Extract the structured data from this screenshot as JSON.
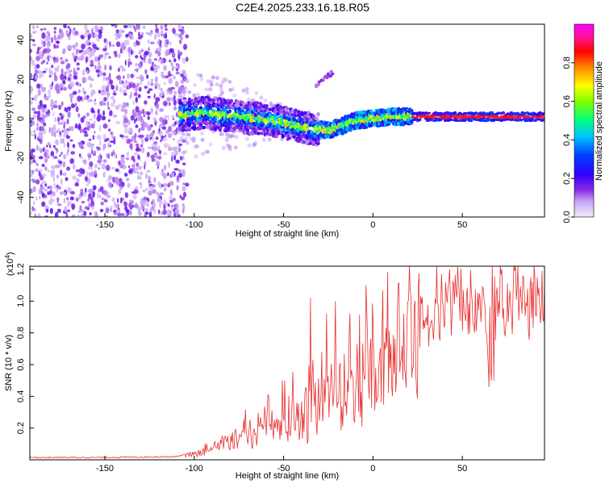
{
  "title": "C2E4.2025.233.16.18.R05",
  "chart_data": [
    {
      "type": "heatmap",
      "title": "C2E4.2025.233.16.18.R05",
      "xlabel": "Height of straight line (km)",
      "ylabel": "Frequency (Hz)",
      "xlim": [
        -192,
        96
      ],
      "ylim": [
        -50,
        48
      ],
      "xticks": [
        -150,
        -100,
        -50,
        0,
        50
      ],
      "yticks": [
        -40,
        -20,
        0,
        20,
        40
      ],
      "xtick_labels": [
        "-150",
        "-100",
        "-50",
        "0",
        "50"
      ],
      "ytick_labels": [
        "-40",
        "-20",
        "0",
        "20",
        "40"
      ],
      "colorbar": {
        "label": "Normalized spectral amplitude",
        "range": [
          0,
          1
        ],
        "ticks": [
          0.0,
          0.2,
          0.4,
          0.6,
          0.8
        ],
        "tick_labels": [
          "0.0",
          "0.2",
          "0.4",
          "0.6",
          "0.8"
        ],
        "colors": [
          "#f2ecfc",
          "#8a2be2",
          "#5a00ff",
          "#0000ff",
          "#00bfff",
          "#00ffff",
          "#00ff40",
          "#80ff00",
          "#ffff00",
          "#ff8000",
          "#ff0000",
          "#ff1493",
          "#ff00ff"
        ]
      },
      "features": {
        "noise_region_km": [
          -192,
          -108
        ],
        "noise_amplitude": 0.12,
        "signal_band_km": [
          -108,
          96
        ],
        "signal_center_hz": [
          [
            -105,
            2
          ],
          [
            -95,
            3
          ],
          [
            -85,
            2
          ],
          [
            -75,
            1
          ],
          [
            -65,
            0
          ],
          [
            -55,
            -1
          ],
          [
            -45,
            -3
          ],
          [
            -35,
            -5
          ],
          [
            -25,
            -6
          ],
          [
            -18,
            -4
          ],
          [
            -10,
            -1
          ],
          [
            0,
            0
          ],
          [
            10,
            1
          ],
          [
            20,
            1
          ],
          [
            30,
            1
          ],
          [
            40,
            1
          ],
          [
            60,
            1
          ],
          [
            80,
            1
          ],
          [
            96,
            1
          ]
        ],
        "faint_branch": {
          "x": [
            -32,
            -22
          ],
          "y": [
            17,
            24
          ]
        }
      }
    },
    {
      "type": "line",
      "xlabel": "Height of straight line (km)",
      "ylabel": "SNR (10 * v/v)",
      "scale_label": "(x10",
      "scale_exponent": "4",
      "ylabel_units": ")",
      "xlim": [
        -192,
        96
      ],
      "ylim": [
        0,
        1.22
      ],
      "xticks": [
        -150,
        -100,
        -50,
        0,
        50
      ],
      "yticks": [
        0.2,
        0.4,
        0.6,
        0.8,
        1.0,
        1.2
      ],
      "xtick_labels": [
        "-150",
        "-100",
        "-50",
        "0",
        "50"
      ],
      "ytick_labels": [
        "0.2",
        "0.4",
        "0.6",
        "0.8",
        "1.0",
        "1.2"
      ],
      "color": "#e83030",
      "series": [
        {
          "name": "SNR",
          "envelope_x": [
            -192,
            -150,
            -110,
            -100,
            -90,
            -80,
            -70,
            -60,
            -50,
            -40,
            -30,
            -20,
            -10,
            0,
            10,
            20,
            30,
            40,
            50,
            60,
            70,
            80,
            96
          ],
          "envelope_y": [
            0.015,
            0.015,
            0.02,
            0.05,
            0.1,
            0.15,
            0.2,
            0.26,
            0.32,
            0.38,
            0.45,
            0.52,
            0.6,
            0.68,
            0.78,
            0.92,
            1.05,
            1.1,
            1.12,
            1.1,
            1.1,
            1.12,
            1.13
          ],
          "spike_peaks": [
            {
              "x": -35,
              "y": 1.02
            },
            {
              "x": -26,
              "y": 0.92
            },
            {
              "x": -21,
              "y": 1.0
            },
            {
              "x": -4,
              "y": 1.1
            },
            {
              "x": 14,
              "y": 1.1
            },
            {
              "x": 43,
              "y": 1.2
            },
            {
              "x": 72,
              "y": 1.2
            },
            {
              "x": 90,
              "y": 1.22
            }
          ],
          "dip_x_range": [
            64,
            69
          ],
          "dip_y": 0.45
        }
      ]
    }
  ]
}
